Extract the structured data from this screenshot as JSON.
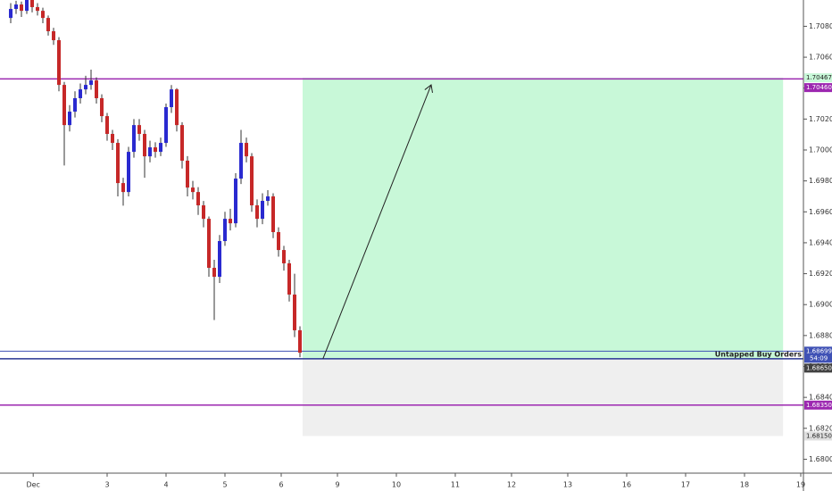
{
  "chart_data": {
    "type": "candlestick",
    "up_color": "#2a2ad0",
    "down_color": "#c62828",
    "wick_color": "#333333",
    "x": [
      0,
      1,
      2,
      3,
      4,
      5,
      6,
      7,
      8,
      9,
      10,
      11,
      12,
      13,
      14,
      15,
      16,
      17,
      18,
      19,
      20,
      21,
      22,
      23,
      24,
      25,
      26,
      27,
      28,
      29,
      30,
      31,
      32,
      33,
      34,
      35,
      36,
      37,
      38,
      39,
      40,
      41,
      42,
      43,
      44,
      45,
      46,
      47,
      48,
      49,
      50,
      51,
      52,
      53,
      54
    ],
    "open": [
      1.70854,
      1.70912,
      1.70941,
      1.709,
      1.7097,
      1.70924,
      1.709,
      1.70854,
      1.70768,
      1.7071,
      1.70421,
      1.70161,
      1.70248,
      1.70335,
      1.70392,
      1.70421,
      1.7045,
      1.70335,
      1.70219,
      1.70104,
      1.70046,
      1.69786,
      1.69728,
      1.69988,
      1.70161,
      1.70104,
      1.69959,
      1.70017,
      1.69988,
      1.70046,
      1.70277,
      1.70392,
      1.70161,
      1.69931,
      1.69757,
      1.69728,
      1.69642,
      1.69555,
      1.69238,
      1.6918,
      1.69411,
      1.69555,
      1.69526,
      1.69815,
      1.70046,
      1.69959,
      1.69642,
      1.69555,
      1.69671,
      1.697,
      1.69469,
      1.69353,
      1.69267,
      1.69065,
      1.68834
    ],
    "high": [
      1.7095,
      1.70965,
      1.7096,
      1.7097,
      1.7097,
      1.7095,
      1.7092,
      1.7087,
      1.7079,
      1.7073,
      1.7044,
      1.7029,
      1.7038,
      1.7043,
      1.7048,
      1.7052,
      1.7047,
      1.7036,
      1.7024,
      1.7013,
      1.7007,
      1.6982,
      1.7002,
      1.702,
      1.702,
      1.7013,
      1.7006,
      1.7005,
      1.7008,
      1.703,
      1.7042,
      1.704,
      1.7018,
      1.6996,
      1.698,
      1.6976,
      1.6967,
      1.6957,
      1.6929,
      1.6945,
      1.696,
      1.6962,
      1.6985,
      1.7013,
      1.7008,
      1.6998,
      1.6968,
      1.6972,
      1.6974,
      1.6972,
      1.695,
      1.6938,
      1.6929,
      1.692,
      1.6886
    ],
    "low": [
      1.7082,
      1.7088,
      1.7086,
      1.7088,
      1.7089,
      1.7087,
      1.7082,
      1.7074,
      1.7068,
      1.7038,
      1.699,
      1.7012,
      1.7021,
      1.703,
      1.7036,
      1.7039,
      1.703,
      1.7018,
      1.7006,
      1.7,
      1.697,
      1.6964,
      1.697,
      1.6995,
      1.7006,
      1.6982,
      1.6992,
      1.6995,
      1.6996,
      1.7002,
      1.7024,
      1.7012,
      1.6988,
      1.697,
      1.6968,
      1.6958,
      1.695,
      1.6918,
      1.689,
      1.6914,
      1.6938,
      1.6948,
      1.695,
      1.6978,
      1.6992,
      1.696,
      1.695,
      1.6952,
      1.6964,
      1.6943,
      1.6931,
      1.6922,
      1.6902,
      1.6879,
      1.6866
    ],
    "close": [
      1.70912,
      1.70941,
      1.709,
      1.7097,
      1.70924,
      1.709,
      1.70854,
      1.70768,
      1.7071,
      1.70421,
      1.70161,
      1.70248,
      1.70335,
      1.70392,
      1.70421,
      1.7045,
      1.70335,
      1.70219,
      1.70104,
      1.70046,
      1.69786,
      1.69728,
      1.69988,
      1.70161,
      1.70104,
      1.69959,
      1.70017,
      1.69988,
      1.70046,
      1.70277,
      1.70392,
      1.70161,
      1.69931,
      1.69757,
      1.69728,
      1.69642,
      1.69555,
      1.69238,
      1.6918,
      1.69411,
      1.69555,
      1.69526,
      1.69815,
      1.70046,
      1.69959,
      1.69642,
      1.69555,
      1.69671,
      1.697,
      1.69469,
      1.69353,
      1.69267,
      1.69065,
      1.68834,
      1.68689
    ],
    "xlim": [
      -2,
      150
    ],
    "ylim": [
      1.6791,
      1.7097
    ],
    "xticks": [
      {
        "value": 4.2,
        "label": "Dec"
      },
      {
        "value": 18,
        "label": "3"
      },
      {
        "value": 29,
        "label": "4"
      },
      {
        "value": 40,
        "label": "5"
      },
      {
        "value": 50.5,
        "label": "6"
      },
      {
        "value": 61,
        "label": "9"
      },
      {
        "value": 72,
        "label": "10"
      },
      {
        "value": 83,
        "label": "11"
      },
      {
        "value": 93.5,
        "label": "12"
      },
      {
        "value": 104,
        "label": "13"
      },
      {
        "value": 115,
        "label": "16"
      },
      {
        "value": 126,
        "label": "17"
      },
      {
        "value": 137,
        "label": "18"
      },
      {
        "value": 147.5,
        "label": "19"
      }
    ],
    "yticks": [
      {
        "value": 1.708,
        "label": "1.70800"
      },
      {
        "value": 1.706,
        "label": "1.70600"
      },
      {
        "value": 1.704,
        "label": "1.70400"
      },
      {
        "value": 1.702,
        "label": "1.70200"
      },
      {
        "value": 1.7,
        "label": "1.70000"
      },
      {
        "value": 1.698,
        "label": "1.69800"
      },
      {
        "value": 1.696,
        "label": "1.69600"
      },
      {
        "value": 1.694,
        "label": "1.69400"
      },
      {
        "value": 1.692,
        "label": "1.69200"
      },
      {
        "value": 1.69,
        "label": "1.69000"
      },
      {
        "value": 1.688,
        "label": "1.68800"
      },
      {
        "value": 1.686,
        "label": "1.68600"
      },
      {
        "value": 1.684,
        "label": "1.68400"
      },
      {
        "value": 1.682,
        "label": "1.68200"
      },
      {
        "value": 1.68,
        "label": "1.68000"
      }
    ],
    "position": {
      "x_start": 54.5,
      "x_end": 144.2,
      "target": {
        "value": 1.70467,
        "label": "1.70467"
      },
      "entry": {
        "value": 1.6865,
        "label": "1.68650"
      },
      "stop": {
        "value": 1.6815,
        "label": "1.68150"
      },
      "annotation": "Untapped Buy Orders",
      "arrow_x": [
        58.3,
        78.5
      ],
      "arrow_y": [
        1.6865,
        1.70421
      ]
    },
    "levels": [
      {
        "value": 1.7046,
        "label": "1.70460",
        "color": "#9c27b0"
      },
      {
        "value": 1.68699,
        "label": "1.68699",
        "color": "#3f51b5",
        "countdown": "54:09"
      },
      {
        "value": 1.6835,
        "label": "1.68350",
        "color": "#9c27b0"
      }
    ]
  }
}
